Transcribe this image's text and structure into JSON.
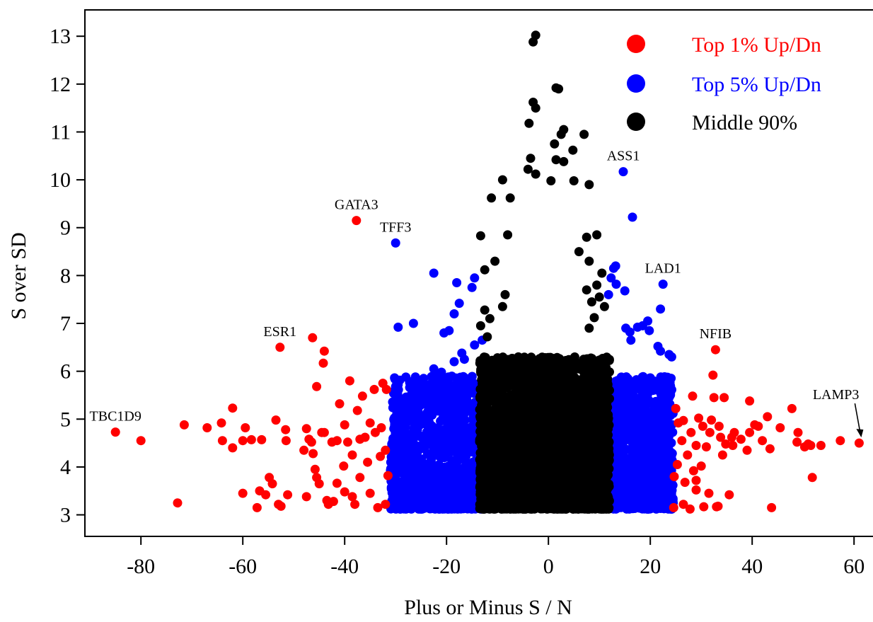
{
  "chart_data": {
    "type": "scatter",
    "xlabel": "Plus or Minus S / N",
    "ylabel": "S over SD",
    "xlim": [
      -91,
      64
    ],
    "ylim": [
      2.55,
      13.55
    ],
    "x_ticks": [
      -80,
      -60,
      -40,
      -20,
      0,
      20,
      40,
      60
    ],
    "y_ticks": [
      3,
      4,
      5,
      6,
      7,
      8,
      9,
      10,
      11,
      12,
      13
    ],
    "grid": false,
    "legend_position": "top-right",
    "series": [
      {
        "name": "Top 1% Up/Dn",
        "color": "#ff0000",
        "points": [
          [
            -37.7,
            9.15
          ],
          [
            -52.7,
            6.5
          ],
          [
            -46.3,
            6.7
          ],
          [
            -44,
            6.42
          ],
          [
            -44.2,
            6.17
          ],
          [
            -45.5,
            5.68
          ],
          [
            -39,
            5.8
          ],
          [
            -85,
            4.73
          ],
          [
            -80,
            4.55
          ],
          [
            -72.8,
            3.25
          ],
          [
            -71.5,
            4.88
          ],
          [
            -67,
            4.82
          ],
          [
            -64.2,
            4.92
          ],
          [
            -62,
            5.23
          ],
          [
            -64,
            4.55
          ],
          [
            -62,
            4.4
          ],
          [
            -60,
            4.55
          ],
          [
            -59.5,
            4.82
          ],
          [
            -58.3,
            4.57
          ],
          [
            -56.3,
            4.57
          ],
          [
            -55.5,
            3.42
          ],
          [
            -57.2,
            3.15
          ],
          [
            -56.7,
            3.5
          ],
          [
            -60,
            3.45
          ],
          [
            -54.8,
            3.78
          ],
          [
            -53.5,
            4.98
          ],
          [
            -54.2,
            3.65
          ],
          [
            -53,
            3.22
          ],
          [
            -52.5,
            3.18
          ],
          [
            -51.6,
            4.78
          ],
          [
            -51.2,
            3.42
          ],
          [
            -51.5,
            4.55
          ],
          [
            -47.5,
            3.38
          ],
          [
            -46.5,
            4.52
          ],
          [
            -46.2,
            4.28
          ],
          [
            -45.8,
            3.95
          ],
          [
            -45.5,
            3.78
          ],
          [
            -45,
            3.65
          ],
          [
            -44.5,
            4.72
          ],
          [
            -43.5,
            3.3
          ],
          [
            -43.2,
            3.22
          ],
          [
            -42.2,
            3.28
          ],
          [
            -41.5,
            3.66
          ],
          [
            -41.5,
            4.55
          ],
          [
            -40.2,
            4.02
          ],
          [
            -40,
            3.48
          ],
          [
            -39.4,
            4.52
          ],
          [
            -38.5,
            3.38
          ],
          [
            -38,
            3.22
          ],
          [
            -37.5,
            5.18
          ],
          [
            -37,
            3.78
          ],
          [
            -36.5,
            5.48
          ],
          [
            -35.5,
            4.1
          ],
          [
            -35,
            3.45
          ],
          [
            -34.2,
            5.62
          ],
          [
            -33.5,
            3.15
          ],
          [
            -32.5,
            5.75
          ],
          [
            -32,
            3.22
          ],
          [
            -32,
            4.35
          ],
          [
            -31.8,
            5.62
          ],
          [
            -31.5,
            3.82
          ],
          [
            -47.5,
            4.8
          ],
          [
            -41,
            5.32
          ],
          [
            -40,
            4.88
          ],
          [
            -36,
            4.62
          ],
          [
            -35,
            4.92
          ],
          [
            -34,
            4.72
          ],
          [
            -33,
            4.22
          ],
          [
            -32.8,
            4.82
          ],
          [
            -38.5,
            4.25
          ],
          [
            -37,
            4.58
          ],
          [
            -42.5,
            4.52
          ],
          [
            -44,
            4.72
          ],
          [
            -48,
            4.35
          ],
          [
            -47,
            4.58
          ],
          [
            32.8,
            6.45
          ],
          [
            32.3,
            5.92
          ],
          [
            32.5,
            5.45
          ],
          [
            28.3,
            5.48
          ],
          [
            25,
            5.22
          ],
          [
            26.5,
            4.97
          ],
          [
            24.7,
            3.8
          ],
          [
            24.6,
            3.15
          ],
          [
            26.5,
            3.22
          ],
          [
            27.8,
            3.12
          ],
          [
            30.5,
            3.17
          ],
          [
            33,
            3.17
          ],
          [
            33.3,
            3.18
          ],
          [
            35.5,
            3.42
          ],
          [
            31.5,
            3.45
          ],
          [
            29,
            3.52
          ],
          [
            29,
            3.72
          ],
          [
            26.8,
            3.68
          ],
          [
            34.5,
            5.45
          ],
          [
            33.8,
            4.62
          ],
          [
            34.2,
            4.25
          ],
          [
            34.8,
            4.48
          ],
          [
            36.2,
            4.45
          ],
          [
            36.5,
            4.72
          ],
          [
            36,
            4.62
          ],
          [
            37.8,
            4.58
          ],
          [
            39,
            4.35
          ],
          [
            39.5,
            5.38
          ],
          [
            39.5,
            4.72
          ],
          [
            40.5,
            4.88
          ],
          [
            41.2,
            4.85
          ],
          [
            42,
            4.55
          ],
          [
            43,
            5.05
          ],
          [
            43.5,
            4.38
          ],
          [
            45.5,
            4.82
          ],
          [
            47.8,
            5.22
          ],
          [
            48.8,
            4.52
          ],
          [
            49,
            4.72
          ],
          [
            50.3,
            4.42
          ],
          [
            51,
            4.48
          ],
          [
            51.5,
            4.45
          ],
          [
            51.8,
            3.78
          ],
          [
            53.5,
            4.45
          ],
          [
            57.3,
            4.55
          ],
          [
            61,
            4.5
          ],
          [
            43.8,
            3.15
          ],
          [
            30.3,
            4.85
          ],
          [
            29,
            4.45
          ],
          [
            28,
            4.72
          ],
          [
            27.3,
            4.25
          ],
          [
            26.2,
            4.55
          ],
          [
            25.5,
            4.92
          ],
          [
            31,
            4.42
          ],
          [
            32,
            4.98
          ],
          [
            30,
            4.02
          ],
          [
            28.5,
            3.92
          ],
          [
            25.3,
            4.05
          ],
          [
            31.7,
            4.72
          ],
          [
            29.5,
            5.02
          ],
          [
            33.5,
            4.85
          ]
        ]
      },
      {
        "name": "Top 5% Up/Dn",
        "color": "#0000ff",
        "points": [
          [
            14.7,
            10.17
          ],
          [
            16.5,
            9.22
          ],
          [
            22.5,
            7.82
          ],
          [
            22,
            7.3
          ],
          [
            13.2,
            8.2
          ],
          [
            12.8,
            8.15
          ],
          [
            12.3,
            7.95
          ],
          [
            11.8,
            7.6
          ],
          [
            15,
            7.68
          ],
          [
            13.3,
            7.82
          ],
          [
            19.5,
            7.05
          ],
          [
            18.5,
            6.95
          ],
          [
            17.5,
            6.92
          ],
          [
            19.8,
            6.85
          ],
          [
            16,
            6.82
          ],
          [
            21.5,
            6.52
          ],
          [
            22,
            6.42
          ],
          [
            23.7,
            6.35
          ],
          [
            24.2,
            6.3
          ],
          [
            16.2,
            6.65
          ],
          [
            15.2,
            6.9
          ],
          [
            -30,
            8.68
          ],
          [
            -22.5,
            8.05
          ],
          [
            -17.5,
            7.42
          ],
          [
            -18,
            7.85
          ],
          [
            -14.5,
            7.95
          ],
          [
            -15,
            7.75
          ],
          [
            -18.5,
            7.2
          ],
          [
            -19.5,
            6.85
          ],
          [
            -20.5,
            6.8
          ],
          [
            -29.5,
            6.92
          ],
          [
            -26.5,
            7
          ],
          [
            -13,
            6.65
          ],
          [
            -14.5,
            6.55
          ],
          [
            -16.5,
            6.25
          ],
          [
            -17,
            6.38
          ],
          [
            -18.5,
            6.2
          ],
          [
            -21,
            5.98
          ],
          [
            -22.5,
            6.05
          ],
          [
            -24.5,
            5.85
          ],
          [
            -25.5,
            5.52
          ],
          [
            -26,
            5.62
          ],
          [
            -27,
            5.22
          ],
          [
            -29.5,
            5.72
          ],
          [
            -30,
            5.68
          ]
        ],
        "cloud": [
          {
            "x_range": [
              -31,
              -13
            ],
            "y_range": [
              3.12,
              5.9
            ],
            "count": 1100
          },
          {
            "x_range": [
              12,
              24.5
            ],
            "y_range": [
              3.12,
              5.9
            ],
            "count": 900
          }
        ]
      },
      {
        "name": "Middle 90%",
        "color": "#000000",
        "points": [
          [
            -2.5,
            13.02
          ],
          [
            -3,
            12.88
          ],
          [
            1.5,
            11.92
          ],
          [
            2,
            11.9
          ],
          [
            -3,
            11.62
          ],
          [
            -2.5,
            11.5
          ],
          [
            -3.8,
            11.18
          ],
          [
            3,
            11.05
          ],
          [
            2.5,
            10.95
          ],
          [
            7,
            10.95
          ],
          [
            1.2,
            10.75
          ],
          [
            4.8,
            10.62
          ],
          [
            1.5,
            10.42
          ],
          [
            3,
            10.38
          ],
          [
            -3.5,
            10.45
          ],
          [
            -4,
            10.22
          ],
          [
            -2.5,
            10.12
          ],
          [
            -9,
            10
          ],
          [
            0.5,
            9.98
          ],
          [
            5,
            9.98
          ],
          [
            8,
            9.9
          ],
          [
            -11.2,
            9.62
          ],
          [
            -7.5,
            9.62
          ],
          [
            -13.3,
            8.83
          ],
          [
            -8,
            8.85
          ],
          [
            7.5,
            8.8
          ],
          [
            9.5,
            8.85
          ],
          [
            -10.5,
            8.3
          ],
          [
            -12.5,
            8.12
          ],
          [
            6,
            8.5
          ],
          [
            8,
            8.3
          ],
          [
            -8.5,
            7.6
          ],
          [
            -9,
            7.35
          ],
          [
            -12.5,
            7.28
          ],
          [
            -11.5,
            7.1
          ],
          [
            -13.3,
            6.95
          ],
          [
            -12,
            6.72
          ],
          [
            7.5,
            7.7
          ],
          [
            8.5,
            7.45
          ],
          [
            9.5,
            7.8
          ],
          [
            10,
            7.55
          ],
          [
            10.5,
            8.05
          ],
          [
            11,
            7.35
          ],
          [
            9,
            7.12
          ],
          [
            8,
            6.9
          ]
        ],
        "cloud": {
          "x_range": [
            -13.5,
            12
          ],
          "y_range": [
            3.12,
            6.3
          ],
          "count": 3500
        }
      }
    ],
    "annotations": [
      {
        "text": "GATA3",
        "x": -37.7,
        "y": 9.15
      },
      {
        "text": "TFF3",
        "x": -30,
        "y": 8.68
      },
      {
        "text": "ESR1",
        "x": -52.7,
        "y": 6.5
      },
      {
        "text": "TBC1D9",
        "x": -85,
        "y": 4.73
      },
      {
        "text": "ASS1",
        "x": 14.7,
        "y": 10.17
      },
      {
        "text": "LAD1",
        "x": 22.5,
        "y": 7.82
      },
      {
        "text": "NFIB",
        "x": 32.8,
        "y": 6.45
      },
      {
        "text": "LAMP3",
        "x": 61,
        "y": 4.5,
        "arrow": true
      }
    ]
  }
}
